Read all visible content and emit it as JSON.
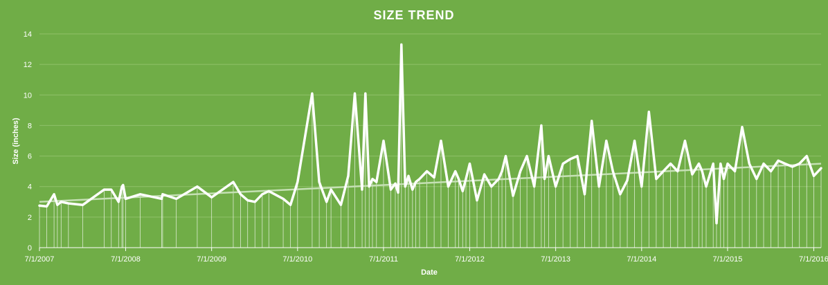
{
  "chart_data": {
    "type": "line",
    "title": "SIZE TREND",
    "xlabel": "Date",
    "ylabel": "Size (inches)",
    "ylim": [
      0,
      14
    ],
    "yticks": [
      0,
      2,
      4,
      6,
      8,
      10,
      12,
      14
    ],
    "xlim": [
      "2007-07-01",
      "2016-08-01"
    ],
    "xticks": [
      "2007-07-01",
      "2008-07-01",
      "2009-07-01",
      "2010-07-01",
      "2011-07-01",
      "2012-07-01",
      "2013-07-01",
      "2014-07-01",
      "2015-07-01",
      "2016-07-01"
    ],
    "xtick_labels": [
      "7/1/2007",
      "7/1/2008",
      "7/1/2009",
      "7/1/2010",
      "7/1/2011",
      "7/1/2012",
      "7/1/2013",
      "7/1/2014",
      "7/1/2015",
      "7/1/2016"
    ],
    "grid": true,
    "legend": "none",
    "colors": {
      "background": "#70ad47",
      "series": "#ffffff",
      "trendline": "#c5e0b4",
      "gridline": "#8fc16a"
    },
    "trendline": {
      "start": [
        "2007-07-01",
        3.0
      ],
      "end": [
        "2016-08-01",
        5.5
      ]
    },
    "series": [
      {
        "x": [
          "2007-07-01",
          "2007-08-01",
          "2007-09-01",
          "2007-09-15",
          "2007-10-01",
          "2007-11-01",
          "2008-01-01",
          "2008-04-01",
          "2008-05-01",
          "2008-06-01",
          "2008-06-15",
          "2008-06-20",
          "2008-07-01",
          "2008-09-01",
          "2008-12-01",
          "2008-12-05",
          "2009-02-01",
          "2009-05-01",
          "2009-07-01",
          "2009-10-01",
          "2009-11-01",
          "2009-12-01",
          "2010-01-01",
          "2010-02-01",
          "2010-03-01",
          "2010-05-01",
          "2010-06-01",
          "2010-07-01",
          "2010-09-01",
          "2010-10-01",
          "2010-11-01",
          "2010-11-20",
          "2011-01-01",
          "2011-02-01",
          "2011-03-01",
          "2011-04-01",
          "2011-04-15",
          "2011-05-01",
          "2011-05-15",
          "2011-06-01",
          "2011-07-01",
          "2011-08-01",
          "2011-08-20",
          "2011-09-01",
          "2011-09-15",
          "2011-10-01",
          "2011-10-15",
          "2011-11-01",
          "2011-11-15",
          "2011-12-01",
          "2012-01-01",
          "2012-02-01",
          "2012-03-01",
          "2012-04-01",
          "2012-05-01",
          "2012-05-15",
          "2012-06-01",
          "2012-06-15",
          "2012-07-01",
          "2012-08-01",
          "2012-09-01",
          "2012-10-01",
          "2012-11-01",
          "2012-11-15",
          "2012-12-01",
          "2013-01-01",
          "2013-02-01",
          "2013-03-01",
          "2013-04-01",
          "2013-05-01",
          "2013-05-15",
          "2013-06-01",
          "2013-07-01",
          "2013-08-01",
          "2013-09-01",
          "2013-10-01",
          "2013-11-01",
          "2013-12-01",
          "2014-01-01",
          "2014-02-01",
          "2014-03-01",
          "2014-04-01",
          "2014-05-01",
          "2014-06-01",
          "2014-07-01",
          "2014-08-01",
          "2014-09-01",
          "2014-10-01",
          "2014-11-01",
          "2014-12-01",
          "2015-01-01",
          "2015-02-01",
          "2015-03-01",
          "2015-03-15",
          "2015-04-01",
          "2015-05-01",
          "2015-05-15",
          "2015-06-01",
          "2015-06-15",
          "2015-07-01",
          "2015-08-01",
          "2015-09-01",
          "2015-10-01",
          "2015-11-01",
          "2015-12-01",
          "2016-01-01",
          "2016-02-01",
          "2016-03-01",
          "2016-04-01",
          "2016-05-01",
          "2016-06-01",
          "2016-07-01",
          "2016-08-01"
        ],
        "y": [
          2.75,
          2.7,
          3.5,
          2.8,
          3.0,
          2.9,
          2.8,
          3.8,
          3.8,
          3.0,
          4.0,
          4.1,
          3.2,
          3.5,
          3.2,
          3.5,
          3.2,
          4.0,
          3.3,
          4.3,
          3.5,
          3.1,
          3.0,
          3.5,
          3.7,
          3.2,
          2.8,
          4.3,
          10.1,
          4.3,
          3.0,
          3.8,
          2.8,
          4.7,
          10.1,
          3.8,
          10.1,
          4.0,
          4.5,
          4.3,
          7.0,
          3.8,
          4.2,
          3.6,
          13.3,
          4.0,
          4.7,
          3.8,
          4.3,
          4.5,
          5.0,
          4.6,
          7.0,
          4.0,
          5.0,
          4.5,
          3.7,
          4.5,
          5.5,
          3.1,
          4.8,
          4.0,
          4.5,
          5.0,
          6.0,
          3.4,
          5.0,
          6.0,
          4.0,
          8.0,
          4.5,
          6.0,
          4.0,
          5.5,
          5.8,
          6.0,
          3.5,
          8.3,
          4.0,
          7.0,
          5.0,
          3.5,
          4.4,
          7.0,
          4.0,
          8.9,
          4.5,
          5.0,
          5.5,
          5.0,
          7.0,
          4.8,
          5.5,
          5.0,
          4.0,
          5.5,
          1.6,
          5.5,
          4.5,
          5.5,
          5.0,
          7.9,
          5.5,
          4.5,
          5.5,
          5.0,
          5.7,
          5.5,
          5.3,
          5.5,
          6.0,
          4.7,
          5.2
        ]
      }
    ]
  }
}
